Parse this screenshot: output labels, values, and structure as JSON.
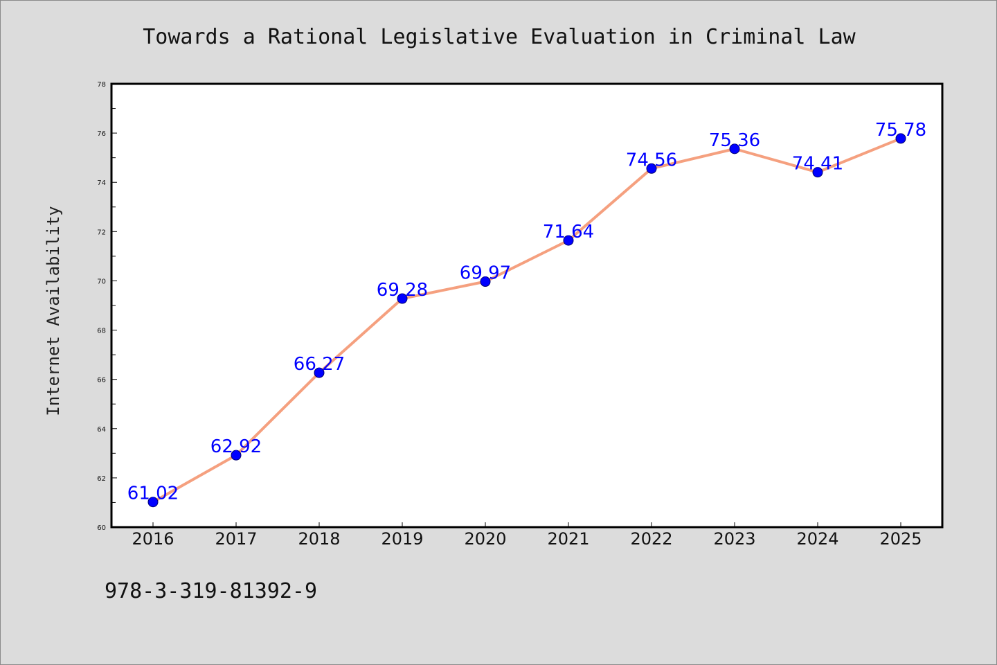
{
  "footer": {
    "text": "978-3-319-81392-9"
  },
  "colors": {
    "page_background": "#dcdcdc",
    "plot_background": "#ffffff",
    "line": "#f5a07f",
    "marker": "#0000ff",
    "marker_outline": "#00006e",
    "data_label": "#0000ff",
    "axis": "#000000"
  },
  "chart_data": {
    "type": "line",
    "title": "Towards a Rational Legislative Evaluation in Criminal Law",
    "xlabel": "",
    "ylabel": "Internet Availability",
    "categories": [
      "2016",
      "2017",
      "2018",
      "2019",
      "2020",
      "2021",
      "2022",
      "2023",
      "2024",
      "2025"
    ],
    "series": [
      {
        "values": [
          61.02,
          62.92,
          66.27,
          69.28,
          69.97,
          71.64,
          74.56,
          75.36,
          74.41,
          75.78
        ],
        "data_labels": [
          "61.02",
          "62.92",
          "66.27",
          "69.28",
          "69.97",
          "71.64",
          "74.56",
          "75.36",
          "74.41",
          "75.78"
        ]
      }
    ],
    "ylim": [
      60,
      78
    ],
    "yticks": [
      "60",
      "62",
      "64",
      "66",
      "68",
      "70",
      "72",
      "74",
      "76",
      "78"
    ],
    "grid": false,
    "legend": "none",
    "markers": "circle"
  }
}
